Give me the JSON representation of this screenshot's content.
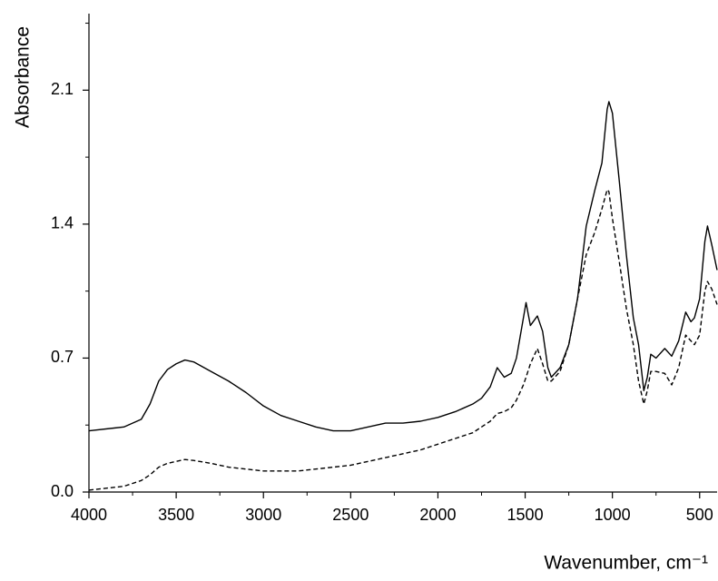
{
  "chart_data": {
    "type": "line",
    "x_label": "Wavenumber, cm⁻¹",
    "y_label": "Absorbance",
    "x": [
      4000,
      3800,
      3700,
      3650,
      3600,
      3550,
      3500,
      3450,
      3400,
      3300,
      3200,
      3100,
      3000,
      2900,
      2800,
      2700,
      2600,
      2500,
      2400,
      2300,
      2200,
      2100,
      2000,
      1900,
      1800,
      1750,
      1700,
      1660,
      1620,
      1580,
      1550,
      1510,
      1495,
      1470,
      1430,
      1400,
      1370,
      1350,
      1300,
      1250,
      1200,
      1150,
      1100,
      1060,
      1030,
      1020,
      1000,
      960,
      920,
      880,
      850,
      820,
      800,
      780,
      750,
      700,
      660,
      620,
      580,
      550,
      530,
      500,
      470,
      455,
      430,
      400
    ],
    "series": [
      {
        "color": "#000000",
        "line_style": "solid",
        "values": [
          0.32,
          0.34,
          0.38,
          0.46,
          0.58,
          0.64,
          0.67,
          0.69,
          0.68,
          0.63,
          0.58,
          0.52,
          0.45,
          0.4,
          0.37,
          0.34,
          0.32,
          0.32,
          0.34,
          0.36,
          0.36,
          0.37,
          0.39,
          0.42,
          0.46,
          0.49,
          0.55,
          0.65,
          0.6,
          0.62,
          0.7,
          0.91,
          0.99,
          0.87,
          0.92,
          0.84,
          0.65,
          0.6,
          0.65,
          0.77,
          1.01,
          1.39,
          1.58,
          1.72,
          2.0,
          2.04,
          1.98,
          1.62,
          1.24,
          0.91,
          0.77,
          0.53,
          0.6,
          0.72,
          0.7,
          0.75,
          0.71,
          0.79,
          0.94,
          0.89,
          0.91,
          1.01,
          1.31,
          1.39,
          1.29,
          1.16
        ]
      },
      {
        "color": "#000000",
        "line_style": "dashed",
        "values": [
          0.01,
          0.03,
          0.06,
          0.09,
          0.13,
          0.15,
          0.16,
          0.17,
          0.165,
          0.15,
          0.13,
          0.12,
          0.11,
          0.11,
          0.11,
          0.12,
          0.13,
          0.14,
          0.16,
          0.18,
          0.2,
          0.22,
          0.25,
          0.28,
          0.31,
          0.34,
          0.37,
          0.41,
          0.42,
          0.44,
          0.48,
          0.56,
          0.6,
          0.67,
          0.75,
          0.67,
          0.58,
          0.58,
          0.63,
          0.77,
          1.01,
          1.24,
          1.36,
          1.48,
          1.58,
          1.57,
          1.43,
          1.2,
          0.96,
          0.77,
          0.58,
          0.46,
          0.53,
          0.63,
          0.63,
          0.62,
          0.56,
          0.65,
          0.82,
          0.79,
          0.77,
          0.82,
          1.05,
          1.1,
          1.06,
          0.98
        ]
      }
    ],
    "xlim": [
      4000,
      400
    ],
    "ylim": [
      0,
      2.5
    ],
    "xticks": [
      4000,
      3500,
      3000,
      2500,
      2000,
      1500,
      1000,
      500
    ],
    "yticks": [
      {
        "value": 0,
        "label": "0.0"
      },
      0.7,
      1.4,
      2.1
    ],
    "xminor_ticks": [
      3750,
      3250,
      2750,
      2250,
      1750,
      1250,
      750
    ],
    "yminor_ticks": [
      0.35,
      1.05,
      1.75,
      2.45
    ],
    "grid": false
  }
}
